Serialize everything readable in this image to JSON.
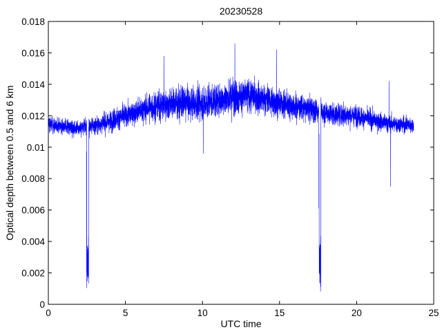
{
  "chart_data": {
    "type": "line",
    "title": "20230528",
    "xlabel": "UTC time",
    "ylabel": "Optical depth between 0.5 and 6 km",
    "xlim": [
      0,
      25
    ],
    "ylim": [
      0,
      0.018
    ],
    "xticks": [
      0,
      5,
      10,
      15,
      20,
      25
    ],
    "yticks": [
      0,
      0.002,
      0.004,
      0.006,
      0.008,
      0.01,
      0.012,
      0.014,
      0.016,
      0.018
    ],
    "xtick_labels": [
      "0",
      "5",
      "10",
      "15",
      "20",
      "25"
    ],
    "ytick_labels": [
      "0",
      "0.002",
      "0.004",
      "0.006",
      "0.008",
      "0.01",
      "0.012",
      "0.014",
      "0.016",
      "0.018"
    ],
    "grid": false,
    "series": [
      {
        "color": "#0000ff",
        "x_start": 0,
        "x_end": 23.7,
        "trend": [
          [
            0.0,
            0.0115
          ],
          [
            2.0,
            0.0112
          ],
          [
            3.5,
            0.0115
          ],
          [
            5.0,
            0.012
          ],
          [
            6.5,
            0.0125
          ],
          [
            8.0,
            0.0128
          ],
          [
            10.0,
            0.0128
          ],
          [
            12.0,
            0.0132
          ],
          [
            13.0,
            0.0133
          ],
          [
            15.0,
            0.0128
          ],
          [
            17.0,
            0.0124
          ],
          [
            18.5,
            0.0121
          ],
          [
            20.0,
            0.012
          ],
          [
            22.0,
            0.0115
          ],
          [
            23.7,
            0.0114
          ]
        ],
        "noise_amplitude": [
          [
            0.0,
            0.0006
          ],
          [
            2.0,
            0.0006
          ],
          [
            4.0,
            0.0008
          ],
          [
            8.0,
            0.0012
          ],
          [
            12.0,
            0.0014
          ],
          [
            16.0,
            0.001
          ],
          [
            20.0,
            0.0008
          ],
          [
            23.7,
            0.0006
          ]
        ],
        "dips": [
          {
            "x_start": 2.48,
            "x_end": 2.62,
            "min": 0.001,
            "max": 0.0038
          },
          {
            "x_start": 17.55,
            "x_end": 17.68,
            "min": 0.0002,
            "max": 0.004
          }
        ],
        "spikes": [
          {
            "x": 22.2,
            "value": 0.0075
          },
          {
            "x": 22.1,
            "value": 0.0142
          },
          {
            "x": 12.1,
            "value": 0.0166
          },
          {
            "x": 7.5,
            "value": 0.0158
          },
          {
            "x": 10.05,
            "value": 0.0096
          },
          {
            "x": 14.8,
            "value": 0.0162
          }
        ]
      }
    ]
  }
}
